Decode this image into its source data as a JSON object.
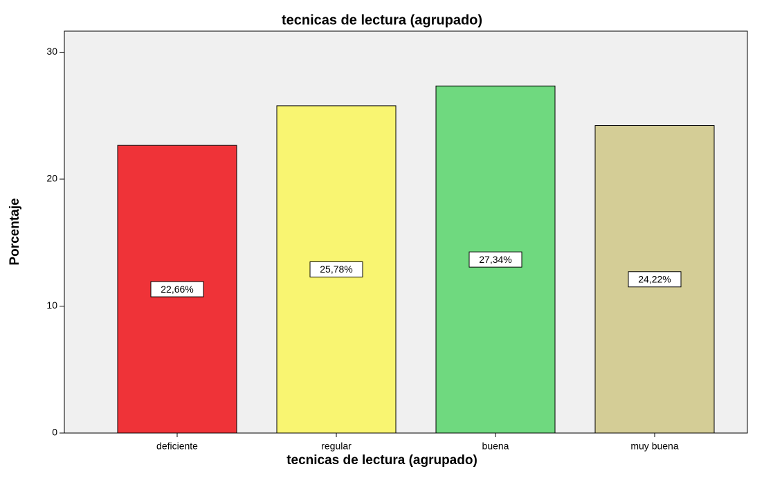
{
  "chart_data": {
    "type": "bar",
    "title": "tecnicas de lectura  (agrupado)",
    "x_label": "tecnicas de lectura  (agrupado)",
    "y_label": "Porcentaje",
    "categories": [
      "deficiente",
      "regular",
      "buena",
      "muy buena"
    ],
    "values": [
      22.66,
      25.78,
      27.34,
      24.22
    ],
    "value_labels": [
      "22,66%",
      "25,78%",
      "27,34%",
      "24,22%"
    ],
    "colors": [
      "#ef3338",
      "#f9f571",
      "#6fd97f",
      "#d4cd96"
    ],
    "ylim": [
      0,
      31.66
    ],
    "yticks": [
      0,
      10,
      20,
      30
    ],
    "grid": false
  }
}
